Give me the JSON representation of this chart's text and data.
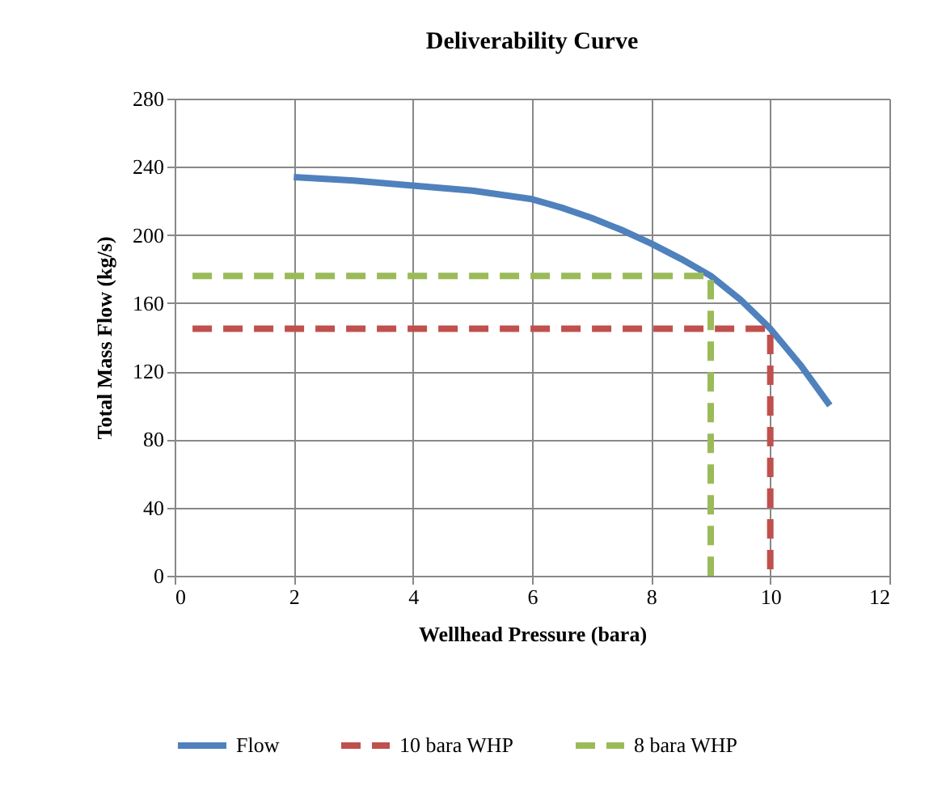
{
  "chart_data": {
    "type": "line",
    "title": "Deliverability Curve",
    "xlabel": "Wellhead Pressure (bara)",
    "ylabel": "Total Mass Flow (kg/s)",
    "xlim": [
      0,
      12
    ],
    "xticks": [
      0,
      2,
      4,
      6,
      8,
      10,
      12
    ],
    "ylim": [
      0,
      280
    ],
    "yticks": [
      0,
      40,
      80,
      120,
      160,
      200,
      240,
      280
    ],
    "grid": true,
    "legend": "bottom",
    "marker": "none",
    "series": [
      {
        "name": "Flow",
        "color": "#4f81bd",
        "line_style": "solid",
        "x": [
          2,
          3,
          4,
          5,
          6,
          6.5,
          7,
          7.5,
          8,
          8.5,
          9,
          9.5,
          10,
          10.5,
          11
        ],
        "values": [
          234,
          232,
          229,
          226,
          221,
          216,
          210,
          203,
          195,
          186,
          176,
          162,
          145,
          124,
          100
        ]
      },
      {
        "name": "10 bara WHP",
        "color": "#c0504d",
        "line_style": "dashed",
        "x": [
          0.3,
          10,
          10
        ],
        "values": [
          145,
          145,
          0
        ]
      },
      {
        "name": "8 bara WHP",
        "color": "#9bbb59",
        "line_style": "dashed",
        "x": [
          0.3,
          9,
          9
        ],
        "values": [
          176,
          176,
          0
        ]
      }
    ]
  }
}
